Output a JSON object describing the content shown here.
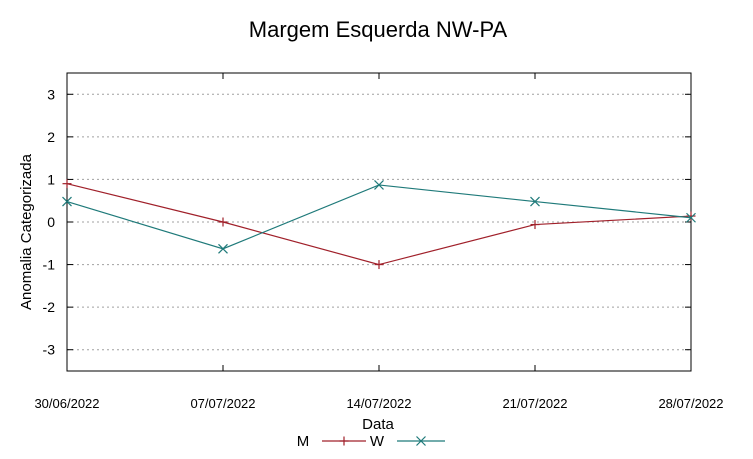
{
  "chart_data": {
    "type": "line",
    "title": "Margem Esquerda NW-PA",
    "xlabel": "Data",
    "ylabel": "Anomalia Categorizada",
    "categories": [
      "30/06/2022",
      "07/07/2022",
      "14/07/2022",
      "21/07/2022",
      "28/07/2022"
    ],
    "ylim": [
      -3.5,
      3.5
    ],
    "yticks": [
      3,
      2,
      1,
      0,
      -1,
      -2,
      -3
    ],
    "grid": true,
    "legend": "bottom-center",
    "series": [
      {
        "name": "M",
        "values": [
          0.9,
          0.0,
          -1.0,
          -0.06,
          0.14
        ],
        "color": "#a0202a",
        "marker": "plus"
      },
      {
        "name": "W",
        "values": [
          0.48,
          -0.63,
          0.87,
          0.48,
          0.1
        ],
        "color": "#1f7a7a",
        "marker": "cross"
      }
    ]
  }
}
